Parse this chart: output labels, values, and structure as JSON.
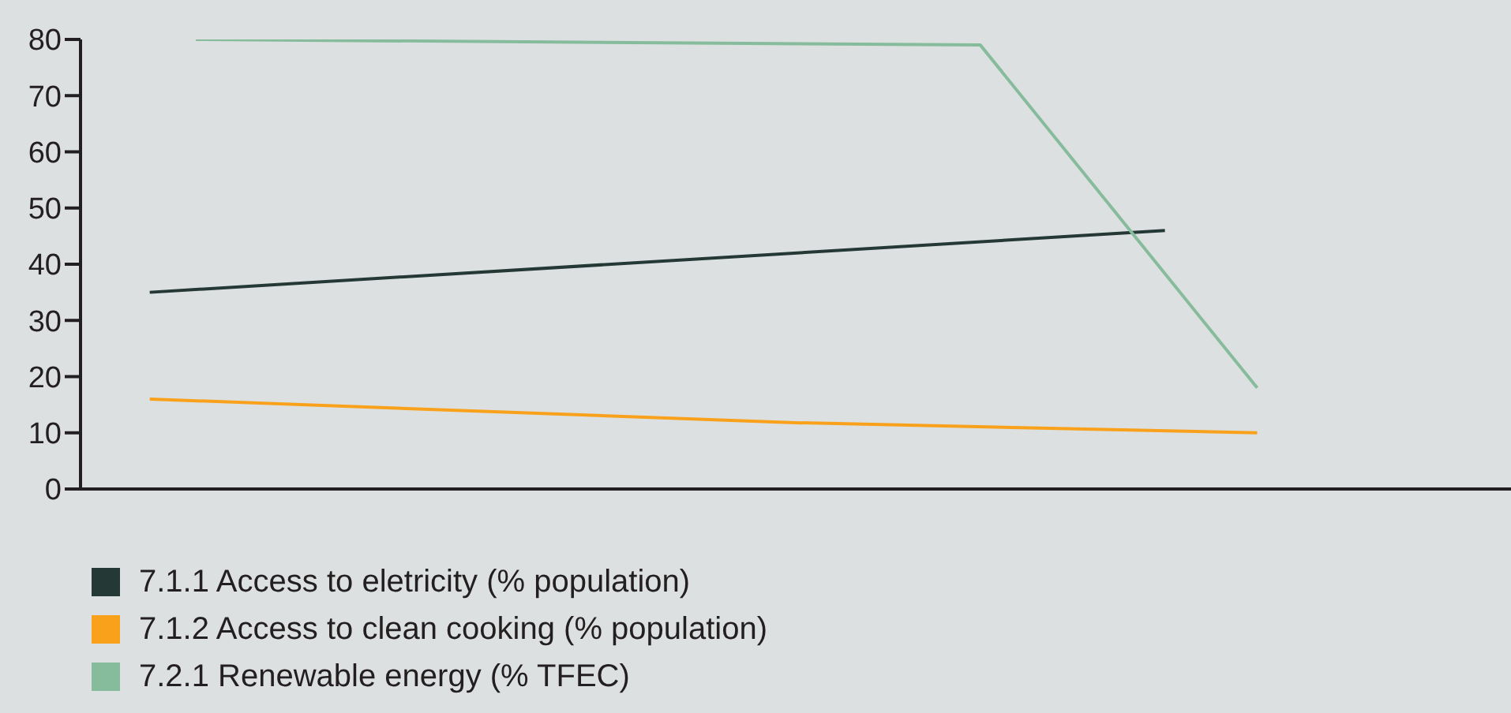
{
  "chart_data": {
    "type": "line",
    "categories": [
      null,
      null,
      null,
      null,
      null,
      null,
      null,
      null,
      null,
      null,
      null,
      null,
      null,
      null,
      null,
      null,
      null,
      null,
      null,
      null,
      null,
      null,
      null,
      null,
      null,
      null,
      null,
      null,
      null,
      null,
      null
    ],
    "ylim": [
      0,
      80
    ],
    "yticks": [
      0,
      10,
      20,
      30,
      40,
      50,
      60,
      70,
      80
    ],
    "tick_labels": "y",
    "legend": "bottom left",
    "line_style": "solid",
    "series": [
      {
        "name": "7.1.1 Access to eletricity (% population)",
        "color": "#243836",
        "values": [
          null,
          35,
          null,
          null,
          null,
          null,
          null,
          null,
          null,
          null,
          null,
          null,
          null,
          null,
          null,
          null,
          null,
          null,
          null,
          null,
          null,
          null,
          null,
          46,
          null,
          null,
          null,
          null,
          null,
          null,
          null
        ]
      },
      {
        "name": "7.1.2 Access to clean cooking (% population)",
        "color": "#f9a11b",
        "values": [
          null,
          16,
          null,
          null,
          null,
          null,
          null,
          null,
          null,
          null,
          null,
          null,
          null,
          null,
          null,
          11.8,
          null,
          null,
          null,
          null,
          null,
          null,
          null,
          null,
          null,
          10,
          null,
          null,
          null,
          null,
          null
        ]
      },
      {
        "name": "7.2.1 Renewable energy (% TFEC)",
        "color": "#86bc9c",
        "values": [
          null,
          null,
          80,
          null,
          null,
          null,
          null,
          null,
          null,
          null,
          null,
          null,
          null,
          null,
          null,
          null,
          null,
          null,
          null,
          79,
          null,
          null,
          null,
          null,
          null,
          18,
          null,
          null,
          null,
          null,
          null
        ]
      }
    ]
  }
}
